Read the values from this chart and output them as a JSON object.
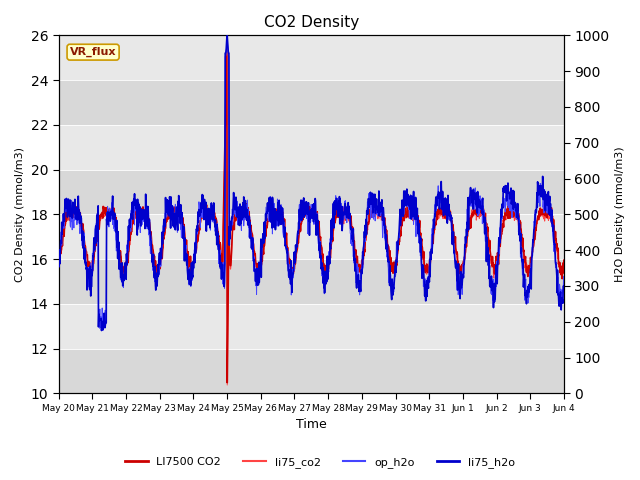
{
  "title": "CO2 Density",
  "xlabel": "Time",
  "ylabel_left": "CO2 Density (mmol/m3)",
  "ylabel_right": "H2O Density (mmol/m3)",
  "ylim_left": [
    10,
    26
  ],
  "ylim_right": [
    0,
    1000
  ],
  "yticks_left": [
    10,
    12,
    14,
    16,
    18,
    20,
    22,
    24,
    26
  ],
  "yticks_right": [
    0,
    100,
    200,
    300,
    400,
    500,
    600,
    700,
    800,
    900,
    1000
  ],
  "annotation_text": "VR_flux",
  "bg_color": "#e0e0e0",
  "band_colors": [
    "#d8d8d8",
    "#e8e8e8"
  ],
  "n_points": 1500,
  "spike_day": 5.0,
  "drop_day": 1.3
}
